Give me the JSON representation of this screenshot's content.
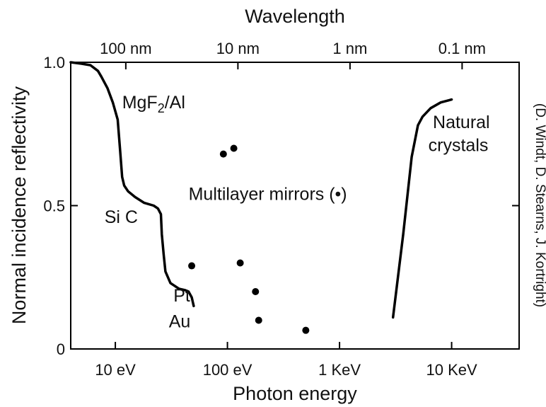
{
  "chart_data": {
    "type": "line",
    "title": "",
    "xlabel": "Photon energy",
    "x2label": "Wavelength",
    "ylabel": "Normal incidence reflectivity",
    "credit": "(D. Windt, D. Stearns, J. Kortright)",
    "x_scale": "log",
    "x_unit": "eV",
    "xlim": [
      4,
      40000
    ],
    "ylim": [
      0,
      1.0
    ],
    "y_ticks": [
      {
        "value": 0,
        "label": "0"
      },
      {
        "value": 0.5,
        "label": "0.5"
      },
      {
        "value": 1.0,
        "label": "1.0"
      }
    ],
    "x_ticks": [
      {
        "value": 10,
        "label": "10 eV"
      },
      {
        "value": 100,
        "label": "100 eV"
      },
      {
        "value": 1000,
        "label": "1 KeV"
      },
      {
        "value": 10000,
        "label": "10 KeV"
      }
    ],
    "x2_ticks": [
      {
        "value": 12.4,
        "label": "100 nm"
      },
      {
        "value": 124,
        "label": "10 nm"
      },
      {
        "value": 1240,
        "label": "1 nm"
      },
      {
        "value": 12400,
        "label": "0.1 nm"
      }
    ],
    "grid": false,
    "legend": "none",
    "series": [
      {
        "name": "MgF2/Al, SiC, Pt, Au",
        "x": [
          4,
          5,
          6,
          7,
          7.5,
          8.5,
          9.5,
          10.5,
          11,
          11.5,
          12,
          13,
          15,
          18,
          22,
          24,
          25.5,
          26,
          27,
          28,
          31,
          37,
          42,
          45,
          48,
          50
        ],
        "y": [
          1.0,
          0.995,
          0.99,
          0.97,
          0.95,
          0.91,
          0.86,
          0.8,
          0.7,
          0.6,
          0.57,
          0.55,
          0.53,
          0.51,
          0.5,
          0.49,
          0.47,
          0.4,
          0.33,
          0.27,
          0.23,
          0.21,
          0.205,
          0.2,
          0.18,
          0.15
        ]
      },
      {
        "name": "Natural crystals",
        "x": [
          3000,
          3700,
          4400,
          5000,
          5500,
          6500,
          8000,
          10000
        ],
        "y": [
          0.11,
          0.4,
          0.67,
          0.78,
          0.81,
          0.84,
          0.86,
          0.87
        ]
      },
      {
        "name": "Multilayer mirrors",
        "type": "scatter",
        "x": [
          92,
          114,
          48,
          130,
          178,
          190,
          500
        ],
        "y": [
          0.68,
          0.7,
          0.29,
          0.3,
          0.2,
          0.1,
          0.065
        ]
      }
    ],
    "annotations": [
      {
        "id": "mgf2",
        "text": "MgF2/Al",
        "x": 11.5,
        "y": 0.84
      },
      {
        "id": "sic",
        "text": "Si C",
        "x": 8,
        "y": 0.44
      },
      {
        "id": "pt",
        "text": "Pt,",
        "x": 33,
        "y": 0.165
      },
      {
        "id": "au",
        "text": "Au",
        "x": 30,
        "y": 0.075
      },
      {
        "id": "multilayer",
        "text": "Multilayer mirrors (•)",
        "x": 45,
        "y": 0.52
      },
      {
        "id": "natural",
        "text": "Natural",
        "x": 6800,
        "y": 0.77
      },
      {
        "id": "crystals",
        "text": "crystals",
        "x": 6200,
        "y": 0.69
      }
    ]
  }
}
